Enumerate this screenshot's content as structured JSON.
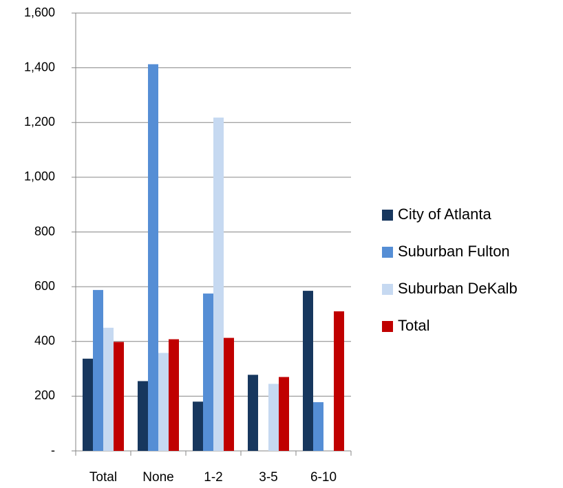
{
  "chart_data": {
    "type": "bar",
    "categories": [
      "Total",
      "None",
      "1-2",
      "3-5",
      "6-10"
    ],
    "series": [
      {
        "name": "City of Atlanta",
        "color": "#17375e",
        "values": [
          337,
          255,
          180,
          278,
          585
        ]
      },
      {
        "name": "Suburban Fulton",
        "color": "#558ed5",
        "values": [
          588,
          1413,
          575,
          null,
          178
        ]
      },
      {
        "name": "Suburban DeKalb",
        "color": "#c6d9f1",
        "values": [
          450,
          358,
          1218,
          245,
          null
        ]
      },
      {
        "name": "Total",
        "color": "#c00000",
        "values": [
          398,
          408,
          413,
          270,
          510
        ]
      }
    ],
    "ylim": [
      0,
      1600
    ],
    "yticks": [
      {
        "value": 0,
        "label": "-"
      },
      200,
      400,
      600,
      800,
      {
        "value": 1000,
        "label": "1,000"
      },
      {
        "value": 1200,
        "label": "1,200"
      },
      {
        "value": 1400,
        "label": "1,400"
      },
      {
        "value": 1600,
        "label": "1,600"
      }
    ],
    "grid": true,
    "legend": "right"
  }
}
